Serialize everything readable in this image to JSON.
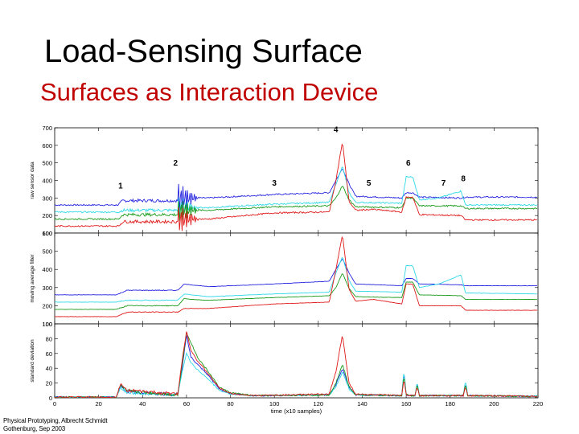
{
  "slide": {
    "title": "Load-Sensing Surface",
    "subtitle": "Surfaces as Interaction Device",
    "footer_line1": "Physical Prototyping, Albrecht Schmidt",
    "footer_line2": "Gothenburg, Sep 2003"
  },
  "colors": {
    "blue": "#2424e0",
    "cyan": "#30d8e8",
    "green": "#1a9a1a",
    "red": "#e01a1a"
  },
  "chart_data": [
    {
      "type": "line",
      "ylabel": "raw sensor data",
      "xlim": [
        0,
        220
      ],
      "ylim": [
        100,
        700
      ],
      "yticks": [
        100,
        200,
        300,
        400,
        500,
        600,
        700
      ],
      "xticks": [
        0,
        20,
        40,
        60,
        80,
        100,
        120,
        140,
        160,
        180,
        200,
        220
      ],
      "annotations": [
        {
          "text": "1",
          "x": 30,
          "y": 355
        },
        {
          "text": "2",
          "x": 55,
          "y": 485
        },
        {
          "text": "3",
          "x": 100,
          "y": 370
        },
        {
          "text": "4",
          "x": 128,
          "y": 675
        },
        {
          "text": "5",
          "x": 143,
          "y": 370
        },
        {
          "text": "6",
          "x": 161,
          "y": 485
        },
        {
          "text": "7",
          "x": 177,
          "y": 370
        },
        {
          "text": "8",
          "x": 186,
          "y": 395
        }
      ],
      "series": [
        {
          "color": "blue",
          "noise": 4,
          "burst": 95,
          "x": [
            0,
            29,
            31,
            56,
            58,
            70,
            100,
            125,
            128,
            131,
            134,
            137,
            158,
            160,
            163,
            166,
            185,
            187,
            220
          ],
          "y": [
            260,
            260,
            285,
            285,
            300,
            300,
            320,
            330,
            400,
            470,
            380,
            310,
            300,
            330,
            330,
            305,
            300,
            305,
            305
          ]
        },
        {
          "color": "cyan",
          "noise": 4,
          "burst": 70,
          "x": [
            0,
            29,
            31,
            56,
            58,
            70,
            100,
            125,
            128,
            131,
            134,
            137,
            158,
            160,
            163,
            166,
            175,
            185,
            187,
            220
          ],
          "y": [
            220,
            220,
            230,
            230,
            245,
            245,
            265,
            275,
            380,
            480,
            330,
            275,
            270,
            420,
            420,
            290,
            300,
            340,
            260,
            260
          ]
        },
        {
          "color": "green",
          "noise": 4,
          "burst": 75,
          "x": [
            0,
            29,
            31,
            56,
            58,
            70,
            100,
            125,
            128,
            131,
            134,
            137,
            158,
            160,
            163,
            166,
            185,
            187,
            220
          ],
          "y": [
            180,
            180,
            205,
            205,
            230,
            230,
            250,
            255,
            300,
            370,
            290,
            250,
            245,
            300,
            300,
            255,
            255,
            240,
            240
          ]
        },
        {
          "color": "red",
          "noise": 4,
          "burst": 85,
          "x": [
            0,
            29,
            31,
            56,
            58,
            70,
            100,
            125,
            128,
            131,
            134,
            137,
            145,
            158,
            160,
            163,
            166,
            185,
            187,
            220
          ],
          "y": [
            140,
            140,
            165,
            165,
            180,
            180,
            215,
            220,
            400,
            620,
            280,
            230,
            235,
            220,
            305,
            305,
            205,
            200,
            175,
            175
          ]
        }
      ]
    },
    {
      "type": "line",
      "ylabel": "moving average filter",
      "xlim": [
        0,
        220
      ],
      "ylim": [
        100,
        600
      ],
      "yticks": [
        100,
        200,
        300,
        400,
        500,
        600
      ],
      "xticks": [
        0,
        20,
        40,
        60,
        80,
        100,
        120,
        140,
        160,
        180,
        200,
        220
      ],
      "series": [
        {
          "color": "blue",
          "noise": 1,
          "burst": 0,
          "x": [
            0,
            28,
            33,
            56,
            59,
            62,
            70,
            100,
            125,
            128,
            131,
            134,
            137,
            158,
            160,
            163,
            166,
            185,
            187,
            220
          ],
          "y": [
            260,
            260,
            285,
            285,
            320,
            315,
            305,
            320,
            335,
            400,
            460,
            380,
            320,
            310,
            350,
            350,
            320,
            315,
            310,
            310
          ]
        },
        {
          "color": "cyan",
          "noise": 1,
          "burst": 0,
          "x": [
            0,
            28,
            33,
            56,
            59,
            62,
            70,
            100,
            125,
            128,
            131,
            134,
            137,
            158,
            160,
            163,
            166,
            175,
            185,
            187,
            220
          ],
          "y": [
            220,
            220,
            230,
            230,
            265,
            260,
            250,
            265,
            275,
            380,
            470,
            340,
            280,
            275,
            420,
            420,
            300,
            320,
            370,
            270,
            265
          ]
        },
        {
          "color": "green",
          "noise": 1,
          "burst": 0,
          "x": [
            0,
            28,
            33,
            56,
            59,
            62,
            70,
            100,
            125,
            128,
            131,
            134,
            137,
            158,
            160,
            163,
            166,
            185,
            187,
            220
          ],
          "y": [
            180,
            180,
            200,
            200,
            240,
            235,
            230,
            245,
            255,
            300,
            380,
            295,
            250,
            245,
            330,
            330,
            260,
            255,
            235,
            235
          ]
        },
        {
          "color": "red",
          "noise": 1,
          "burst": 0,
          "x": [
            0,
            28,
            33,
            56,
            59,
            62,
            70,
            100,
            125,
            128,
            131,
            134,
            137,
            145,
            158,
            160,
            163,
            166,
            185,
            187,
            220
          ],
          "y": [
            140,
            140,
            165,
            165,
            185,
            185,
            185,
            210,
            220,
            400,
            590,
            290,
            225,
            235,
            210,
            320,
            320,
            200,
            200,
            175,
            175
          ]
        }
      ]
    },
    {
      "type": "line",
      "ylabel": "standard deviation",
      "xlabel": "time (x10 samples)",
      "xlim": [
        0,
        220
      ],
      "ylim": [
        0,
        100
      ],
      "yticks": [
        0,
        20,
        40,
        60,
        80,
        100
      ],
      "xticks": [
        0,
        20,
        40,
        60,
        80,
        100,
        120,
        140,
        160,
        180,
        200,
        220
      ],
      "series": [
        {
          "color": "blue",
          "noise": 1,
          "burst": 0,
          "x": [
            0,
            28,
            30,
            33,
            56,
            58,
            60,
            62,
            65,
            70,
            75,
            80,
            90,
            125,
            128,
            131,
            134,
            137,
            158,
            159,
            160,
            161,
            164,
            165,
            166,
            186,
            187,
            188,
            220
          ],
          "y": [
            1,
            1,
            16,
            8,
            4,
            40,
            85,
            55,
            45,
            30,
            12,
            6,
            3,
            4,
            18,
            40,
            15,
            4,
            3,
            35,
            5,
            3,
            3,
            20,
            3,
            3,
            20,
            3,
            2
          ]
        },
        {
          "color": "cyan",
          "noise": 1,
          "burst": 0,
          "x": [
            0,
            28,
            30,
            33,
            56,
            58,
            60,
            62,
            65,
            70,
            75,
            80,
            90,
            125,
            128,
            131,
            134,
            137,
            158,
            159,
            160,
            161,
            164,
            165,
            166,
            186,
            187,
            188,
            220
          ],
          "y": [
            1,
            1,
            15,
            7,
            4,
            35,
            60,
            48,
            38,
            25,
            10,
            5,
            3,
            4,
            15,
            35,
            12,
            4,
            3,
            38,
            5,
            3,
            3,
            22,
            3,
            3,
            25,
            3,
            2
          ]
        },
        {
          "color": "green",
          "noise": 1,
          "burst": 0,
          "x": [
            0,
            28,
            30,
            33,
            56,
            58,
            60,
            62,
            65,
            70,
            75,
            80,
            90,
            125,
            128,
            131,
            134,
            137,
            158,
            159,
            160,
            161,
            164,
            165,
            166,
            186,
            187,
            188,
            220
          ],
          "y": [
            1,
            1,
            17,
            9,
            4,
            45,
            88,
            75,
            55,
            35,
            14,
            7,
            3,
            4,
            20,
            45,
            15,
            4,
            3,
            30,
            5,
            3,
            3,
            18,
            3,
            3,
            18,
            3,
            2
          ]
        },
        {
          "color": "red",
          "noise": 1,
          "burst": 0,
          "x": [
            0,
            28,
            30,
            33,
            56,
            58,
            60,
            62,
            65,
            70,
            75,
            80,
            90,
            125,
            128,
            131,
            134,
            137,
            158,
            159,
            160,
            161,
            164,
            165,
            166,
            186,
            187,
            188,
            220
          ],
          "y": [
            1,
            1,
            18,
            10,
            5,
            50,
            90,
            65,
            50,
            32,
            13,
            6,
            3,
            5,
            35,
            85,
            20,
            5,
            3,
            25,
            5,
            3,
            3,
            15,
            3,
            3,
            15,
            3,
            2
          ]
        }
      ]
    }
  ]
}
